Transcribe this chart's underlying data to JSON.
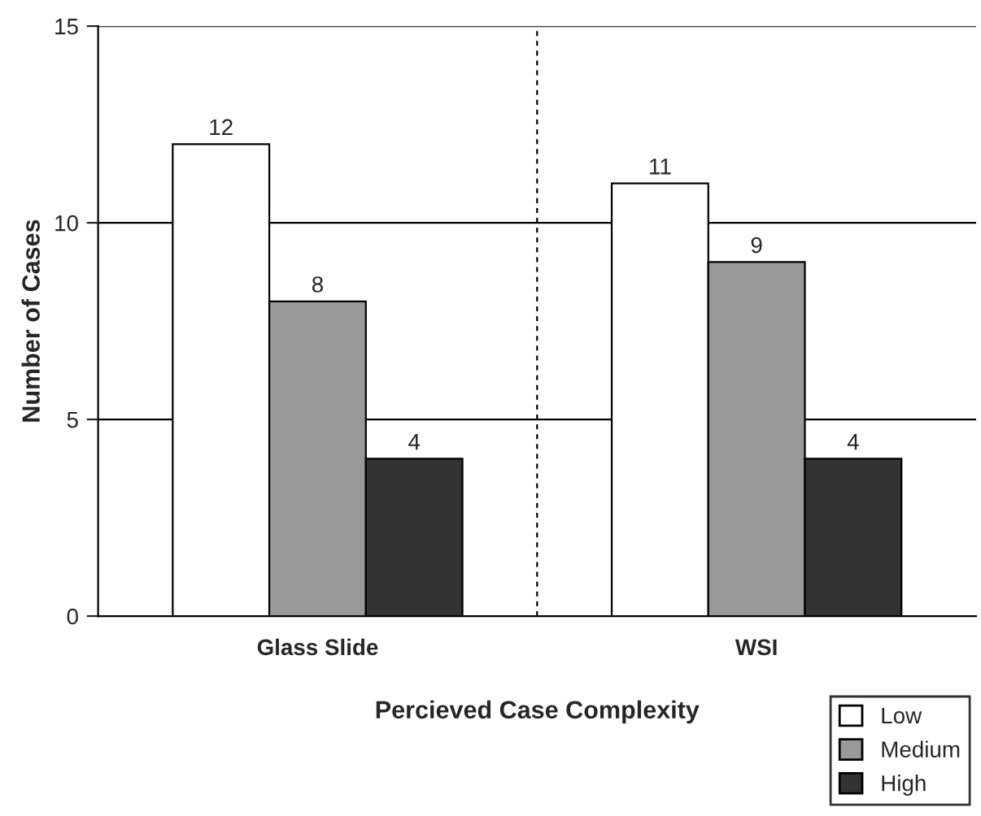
{
  "chart_data": {
    "type": "bar",
    "xlabel": "Percieved Case Complexity",
    "ylabel": "Number of Cases",
    "categories": [
      "Glass Slide",
      "WSI"
    ],
    "series": [
      {
        "name": "Low",
        "color": "#ffffff",
        "values": [
          12,
          11
        ]
      },
      {
        "name": "Medium",
        "color": "#999999",
        "values": [
          8,
          9
        ]
      },
      {
        "name": "High",
        "color": "#333333",
        "values": [
          4,
          4
        ]
      }
    ],
    "ylim": [
      0,
      15
    ],
    "yticks": [
      0,
      5,
      10,
      15
    ],
    "grid": "y",
    "data_labels": true,
    "legend": "bottom right"
  }
}
